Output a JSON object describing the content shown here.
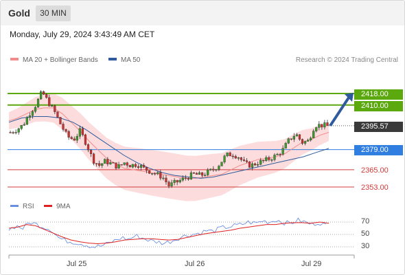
{
  "header": {
    "symbol": "Gold",
    "timeframe": "30 MIN"
  },
  "datetime": "Monday, July 29, 2024 3:43:49 AM CET",
  "legend": {
    "ma20_label": "MA 20 + Bollinger Bands",
    "ma20_color": "#f28b8b",
    "ma50_label": "MA 50",
    "ma50_color": "#2f5b9c",
    "copyright": "Research © 2024 Trading Central"
  },
  "levels": [
    {
      "label": "2418.00",
      "kind": "resistance",
      "color": "#5ba80f"
    },
    {
      "label": "2410.00",
      "kind": "resistance",
      "color": "#5ba80f"
    },
    {
      "label": "2395.57",
      "kind": "last-price",
      "color": "#3a3a3a"
    },
    {
      "label": "2379.00",
      "kind": "pivot",
      "color": "#2f7ee0"
    },
    {
      "label": "2365.00",
      "kind": "support",
      "color": "#d13a3a"
    },
    {
      "label": "2353.00",
      "kind": "support",
      "color": "#d13a3a"
    }
  ],
  "rsi_legend": {
    "rsi_label": "RSI",
    "rsi_color": "#6b8fe0",
    "ma_label": "9MA",
    "ma_color": "#e02020"
  },
  "rsi_ticks": [
    "70",
    "50",
    "30"
  ],
  "x_axis": [
    "Jul 25",
    "Jul 26",
    "Jul 29"
  ],
  "chart_data": {
    "type": "candlestick",
    "price_axis": {
      "min": 2347,
      "max": 2425
    },
    "price_path": [
      2391,
      2393,
      2396,
      2404,
      2410,
      2419,
      2412,
      2405,
      2396,
      2388,
      2386,
      2392,
      2383,
      2372,
      2368,
      2371,
      2369,
      2367,
      2370,
      2368,
      2369,
      2366,
      2364,
      2362,
      2360,
      2354,
      2356,
      2358,
      2360,
      2362,
      2361,
      2363,
      2365,
      2369,
      2375,
      2376,
      2374,
      2369,
      2368,
      2370,
      2371,
      2373,
      2375,
      2379,
      2386,
      2390,
      2384,
      2385,
      2396,
      2396,
      2395.57
    ],
    "ma20_path": [
      2399,
      2401,
      2404,
      2407,
      2408,
      2408,
      2404,
      2398,
      2392,
      2385,
      2379,
      2373,
      2369,
      2366,
      2365,
      2364,
      2363,
      2362,
      2361,
      2360,
      2359,
      2359,
      2360,
      2361,
      2362,
      2365,
      2368,
      2370,
      2372,
      2373,
      2374,
      2376,
      2380,
      2384,
      2386,
      2389,
      2391
    ],
    "ma50_path": [
      2398,
      2401,
      2402,
      2402,
      2401,
      2398,
      2393,
      2387,
      2381,
      2375,
      2370,
      2366,
      2363,
      2361,
      2360,
      2359,
      2360,
      2362,
      2364,
      2366,
      2368,
      2370,
      2372,
      2374,
      2377,
      2379.8
    ],
    "projection": {
      "from": 2395.57,
      "to": 2418.0
    },
    "rsi_path": [
      58,
      64,
      60,
      70,
      66,
      62,
      58,
      45,
      40,
      38,
      36,
      33,
      30,
      31,
      35,
      40,
      45,
      42,
      48,
      44,
      40,
      38,
      36,
      39,
      44,
      48,
      50,
      52,
      56,
      55,
      60,
      62,
      64,
      66,
      70,
      68,
      72,
      70,
      74,
      69,
      68,
      73,
      70,
      66,
      70,
      64
    ],
    "rsi_ma_path": [
      60,
      62,
      66,
      64,
      58,
      52,
      46,
      41,
      38,
      36,
      35,
      36,
      38,
      41,
      42,
      43,
      43,
      42,
      41,
      42,
      45,
      48,
      51,
      53,
      55,
      57,
      60,
      62,
      64,
      66,
      66,
      68,
      69,
      69,
      68,
      70,
      68
    ],
    "rsi_axis": [
      30,
      50,
      70
    ]
  }
}
